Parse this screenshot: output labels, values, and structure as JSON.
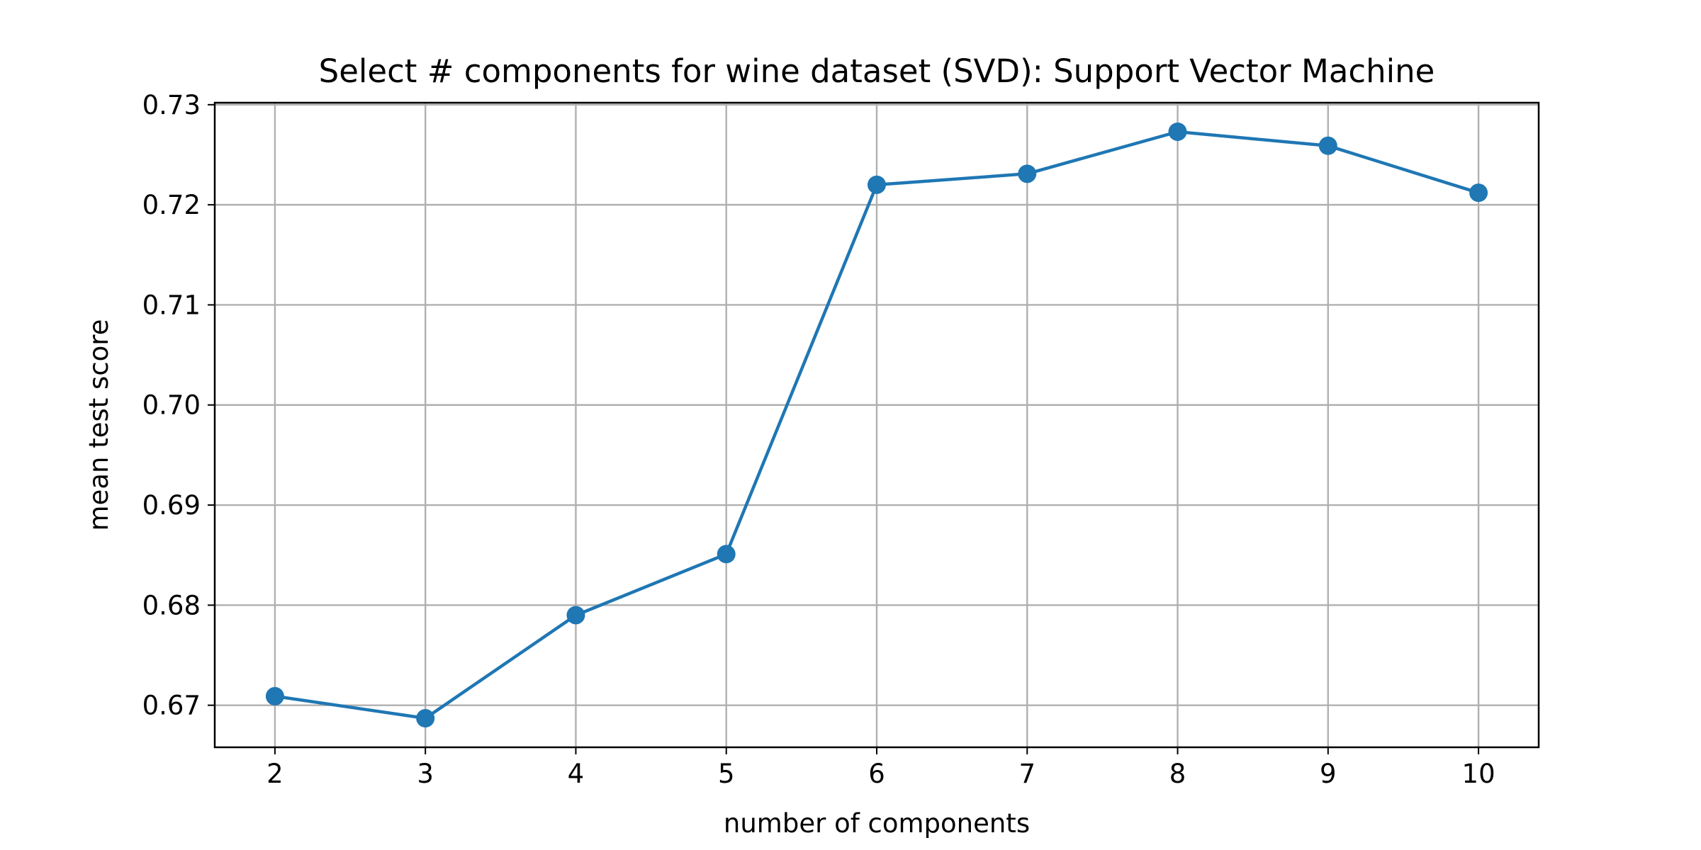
{
  "chart_data": {
    "type": "line",
    "title": "Select # components for wine dataset (SVD): Support Vector Machine",
    "xlabel": "number of components",
    "ylabel": "mean test score",
    "x": [
      2,
      3,
      4,
      5,
      6,
      7,
      8,
      9,
      10
    ],
    "series": [
      {
        "values": [
          0.6709,
          0.6687,
          0.679,
          0.6851,
          0.722,
          0.7231,
          0.7273,
          0.7259,
          0.7212
        ]
      }
    ],
    "xticks": [
      "2",
      "3",
      "4",
      "5",
      "6",
      "7",
      "8",
      "9",
      "10"
    ],
    "yticks": [
      "0.67",
      "0.68",
      "0.69",
      "0.70",
      "0.71",
      "0.72",
      "0.73"
    ],
    "xlim": [
      1.6,
      10.4
    ],
    "ylim": [
      0.6658,
      0.7302
    ],
    "grid": true,
    "color": "#1f77b4",
    "marker": "circle"
  }
}
